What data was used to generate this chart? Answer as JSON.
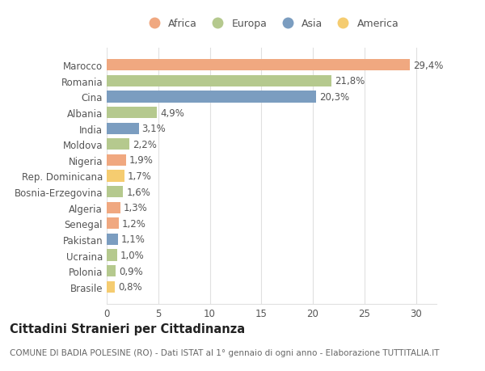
{
  "categories": [
    "Marocco",
    "Romania",
    "Cina",
    "Albania",
    "India",
    "Moldova",
    "Nigeria",
    "Rep. Dominicana",
    "Bosnia-Erzegovina",
    "Algeria",
    "Senegal",
    "Pakistan",
    "Ucraina",
    "Polonia",
    "Brasile"
  ],
  "values": [
    29.4,
    21.8,
    20.3,
    4.9,
    3.1,
    2.2,
    1.9,
    1.7,
    1.6,
    1.3,
    1.2,
    1.1,
    1.0,
    0.9,
    0.8
  ],
  "labels": [
    "29,4%",
    "21,8%",
    "20,3%",
    "4,9%",
    "3,1%",
    "2,2%",
    "1,9%",
    "1,7%",
    "1,6%",
    "1,3%",
    "1,2%",
    "1,1%",
    "1,0%",
    "0,9%",
    "0,8%"
  ],
  "continents": [
    "Africa",
    "Europa",
    "Asia",
    "Europa",
    "Asia",
    "Europa",
    "Africa",
    "America",
    "Europa",
    "Africa",
    "Africa",
    "Asia",
    "Europa",
    "Europa",
    "America"
  ],
  "continent_colors": {
    "Africa": "#F0A880",
    "Europa": "#B5C98E",
    "Asia": "#7B9DC0",
    "America": "#F5CC70"
  },
  "legend_order": [
    "Africa",
    "Europa",
    "Asia",
    "America"
  ],
  "title": "Cittadini Stranieri per Cittadinanza",
  "subtitle": "COMUNE DI BADIA POLESINE (RO) - Dati ISTAT al 1° gennaio di ogni anno - Elaborazione TUTTITALIA.IT",
  "xlim": [
    0,
    32
  ],
  "xticks": [
    0,
    5,
    10,
    15,
    20,
    25,
    30
  ],
  "background_color": "#ffffff",
  "grid_color": "#e0e0e0",
  "title_fontsize": 10.5,
  "subtitle_fontsize": 7.5,
  "tick_fontsize": 8.5,
  "label_fontsize": 8.5,
  "legend_fontsize": 9,
  "bar_height": 0.72
}
